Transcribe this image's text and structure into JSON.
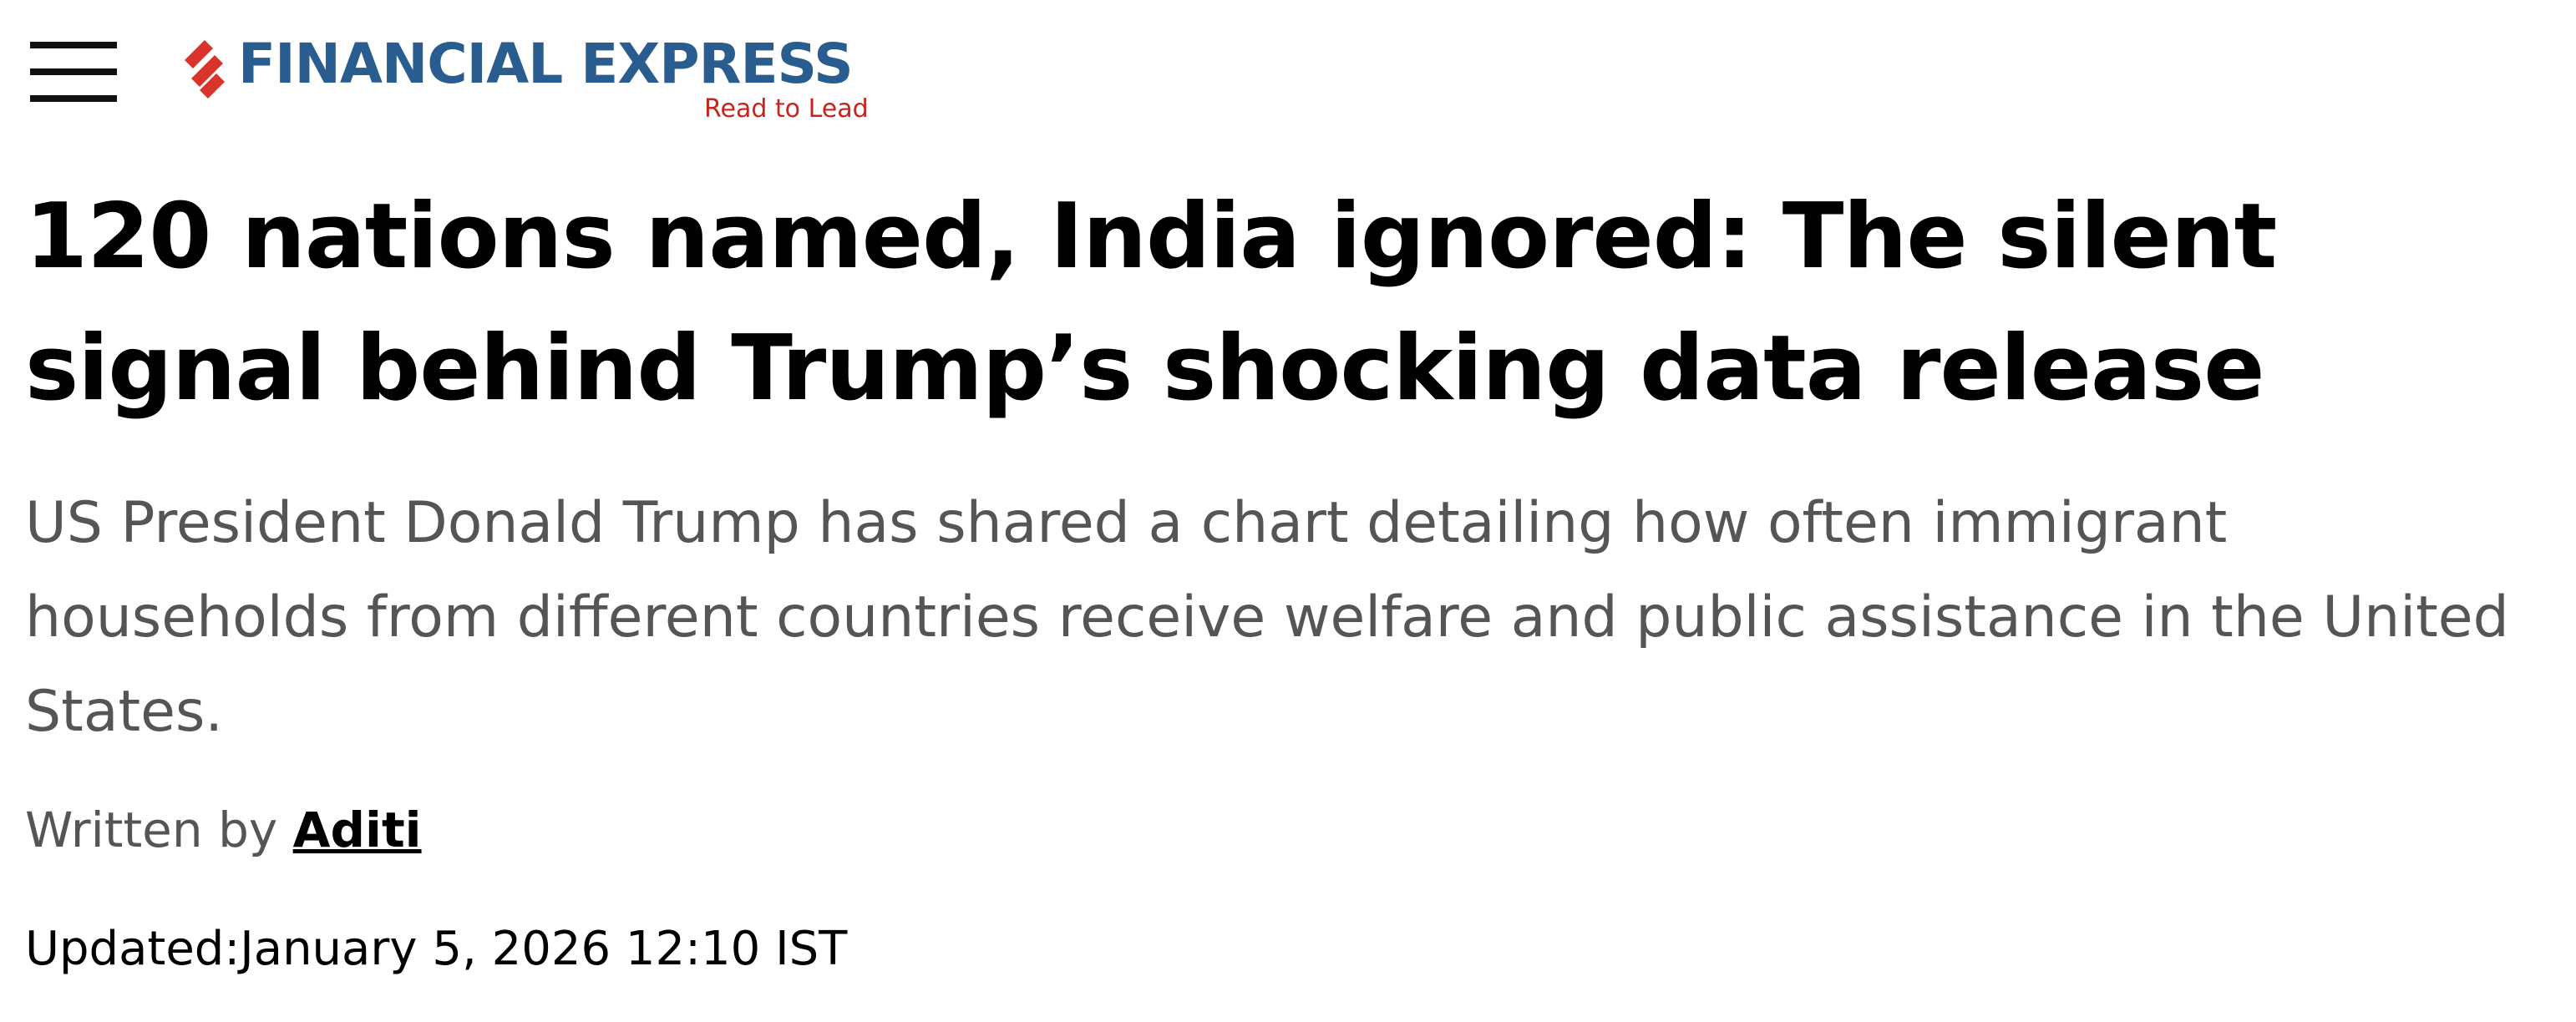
{
  "header": {
    "logo": "FINANCIAL EXPRESS",
    "tagline": "Read to Lead"
  },
  "article": {
    "headline": "120 nations named, India ignored: The silent signal behind Trump’s shocking data release",
    "summary": "US President Donald Trump has shared a chart detailing how often immigrant households from different countries receive welfare and public assistance in the United States.",
    "byline_label": "Written by",
    "author": "Aditi",
    "updated_label": "Updated:",
    "updated": "January 5, 2026 12:10 IST"
  }
}
